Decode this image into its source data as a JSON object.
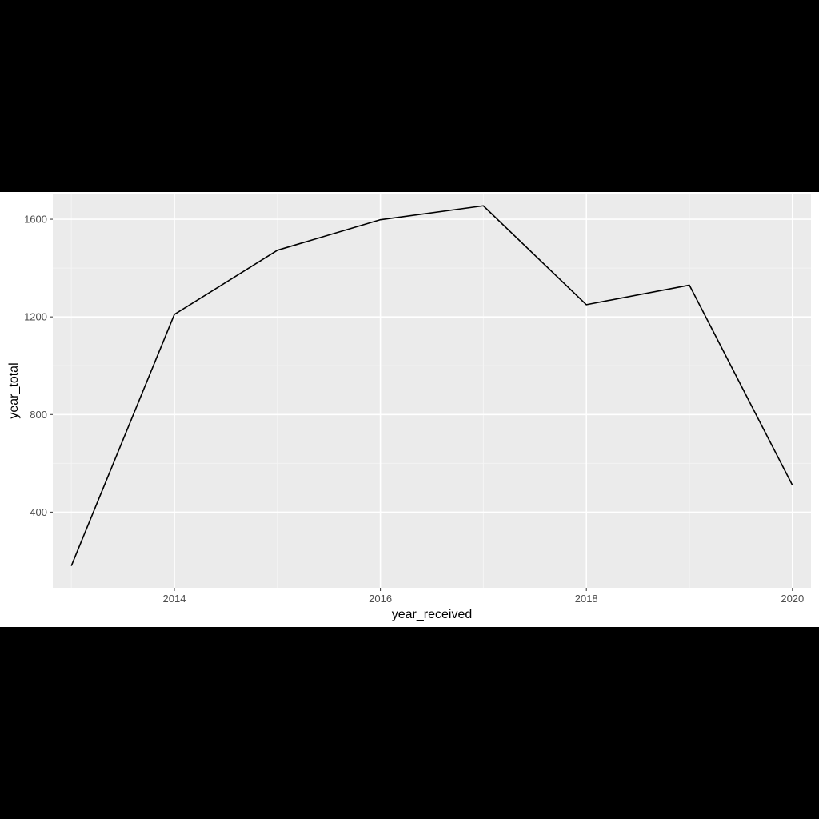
{
  "chart_data": {
    "type": "line",
    "title": "",
    "xlabel": "year_received",
    "ylabel": "year_total",
    "x": [
      2013,
      2014,
      2015,
      2016,
      2017,
      2018,
      2019,
      2020
    ],
    "series": [
      {
        "values": [
          180,
          1210,
          1473,
          1598,
          1655,
          1250,
          1330,
          510
        ]
      }
    ],
    "xlim": [
      2012.82,
      2020.18
    ],
    "ylim": [
      90,
      1705
    ],
    "x_ticks": [
      2014,
      2016,
      2018,
      2020
    ],
    "x_tick_labels": [
      "2014",
      "2016",
      "2018",
      "2020"
    ],
    "x_minor_ticks": [
      2013,
      2015,
      2017,
      2019
    ],
    "y_ticks": [
      400,
      800,
      1200,
      1600
    ],
    "y_tick_labels": [
      "400",
      "800",
      "1200",
      "1600"
    ],
    "y_minor_ticks": [
      200,
      600,
      1000,
      1400
    ],
    "grid": true,
    "legend": "none",
    "colors": {
      "panel_background": "#ebebeb",
      "grid_major": "#ffffff",
      "grid_minor": "#f5f5f5",
      "line": "#000000",
      "tick_text": "#4d4d4d",
      "tick_mark": "#333333"
    }
  }
}
